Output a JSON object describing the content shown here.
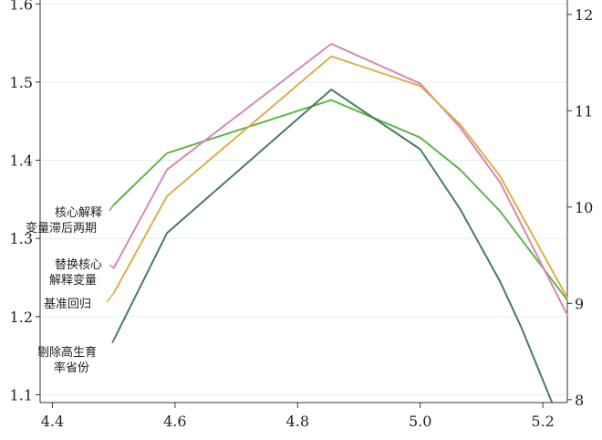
{
  "chart_data": {
    "type": "line",
    "title": "",
    "xlabel": "",
    "ylabel": "",
    "xlim": [
      4.38,
      5.24
    ],
    "ylim": [
      1.09,
      1.605
    ],
    "y2lim": [
      7.97,
      12.15
    ],
    "x_ticks": [
      {
        "value": 4.4,
        "label": "4.4"
      },
      {
        "value": 4.6,
        "label": "4.6"
      },
      {
        "value": 4.8,
        "label": "4.8"
      },
      {
        "value": 5.0,
        "label": "5.0"
      },
      {
        "value": 5.2,
        "label": "5.2"
      }
    ],
    "y_ticks": [
      {
        "value": 1.1,
        "label": "1.1"
      },
      {
        "value": 1.2,
        "label": "1.2"
      },
      {
        "value": 1.3,
        "label": "1.3"
      },
      {
        "value": 1.4,
        "label": "1.4"
      },
      {
        "value": 1.5,
        "label": "1.5"
      },
      {
        "value": 1.6,
        "label": "1.6"
      }
    ],
    "y2_ticks": [
      {
        "value": 8,
        "label": "8"
      },
      {
        "value": 9,
        "label": "9"
      },
      {
        "value": 10,
        "label": "10"
      },
      {
        "value": 11,
        "label": "11"
      },
      {
        "value": 12,
        "label": "12"
      }
    ],
    "grid": true,
    "series": [
      {
        "name": "核心解释变量滞后两期",
        "lines": [
          "核心解释",
          "变量滞后两期"
        ],
        "color": "#5cb847",
        "axis": "left",
        "x": [
          4.5,
          4.587,
          4.855,
          5.0,
          5.065,
          5.13,
          5.24
        ],
        "y": [
          1.343,
          1.409,
          1.477,
          1.429,
          1.388,
          1.335,
          1.221
        ]
      },
      {
        "name": "替换核心解释变量",
        "lines": [
          "替换核心",
          "解释变量"
        ],
        "color": "#d987b4",
        "axis": "left",
        "x": [
          4.5,
          4.587,
          4.855,
          5.0,
          5.065,
          5.13,
          5.24
        ],
        "y": [
          1.262,
          1.388,
          1.549,
          1.498,
          1.442,
          1.372,
          1.202
        ]
      },
      {
        "name": "基准回归",
        "lines": [
          "基准回归"
        ],
        "color": "#dfae45",
        "axis": "left",
        "x": [
          4.5,
          4.587,
          4.855,
          5.0,
          5.065,
          5.13,
          5.24
        ],
        "y": [
          1.23,
          1.354,
          1.533,
          1.495,
          1.446,
          1.38,
          1.224
        ]
      },
      {
        "name": "剔除高生育率省份",
        "lines": [
          "剔除高生育",
          "率省份"
        ],
        "color": "#4a7a62",
        "axis": "right",
        "x": [
          4.5,
          4.587,
          4.855,
          5.0,
          5.065,
          5.13,
          5.165,
          5.215
        ],
        "y": [
          8.62,
          9.73,
          11.22,
          10.6,
          9.98,
          9.23,
          8.75,
          7.97
        ]
      }
    ]
  }
}
